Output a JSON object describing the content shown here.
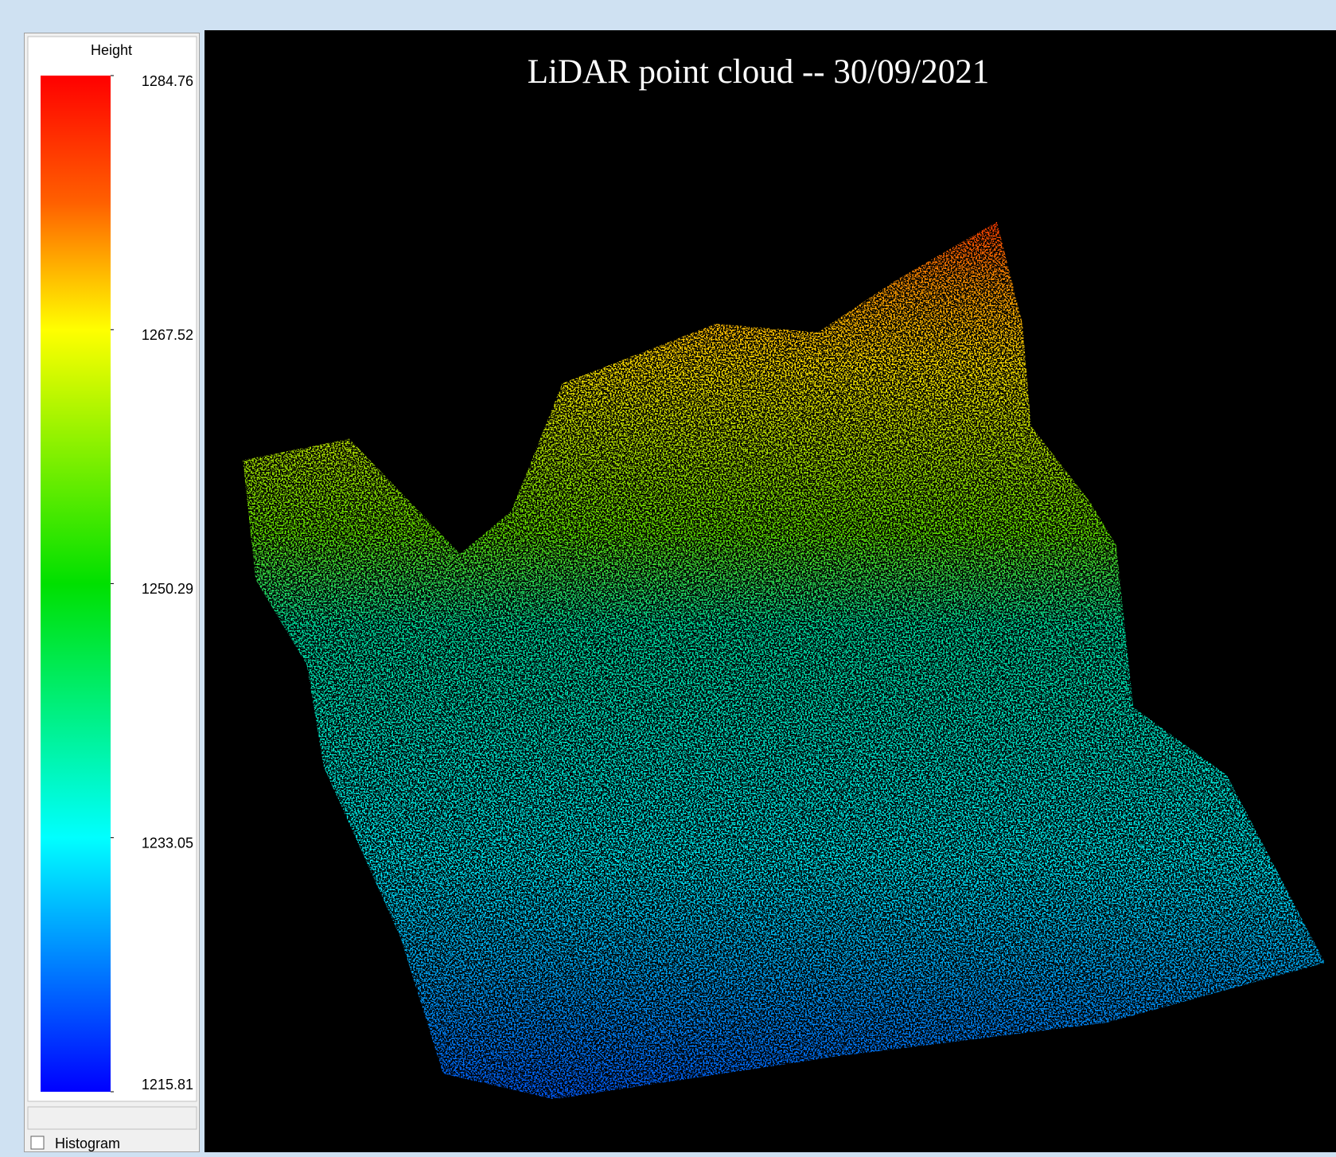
{
  "colorbar": {
    "label": "Height",
    "ticks": [
      1284.76,
      1267.52,
      1250.29,
      1233.05,
      1215.81
    ]
  },
  "histogram_checkbox": "Histogram",
  "plot": {
    "title": "LiDAR point cloud -- 30/09/2021"
  }
}
